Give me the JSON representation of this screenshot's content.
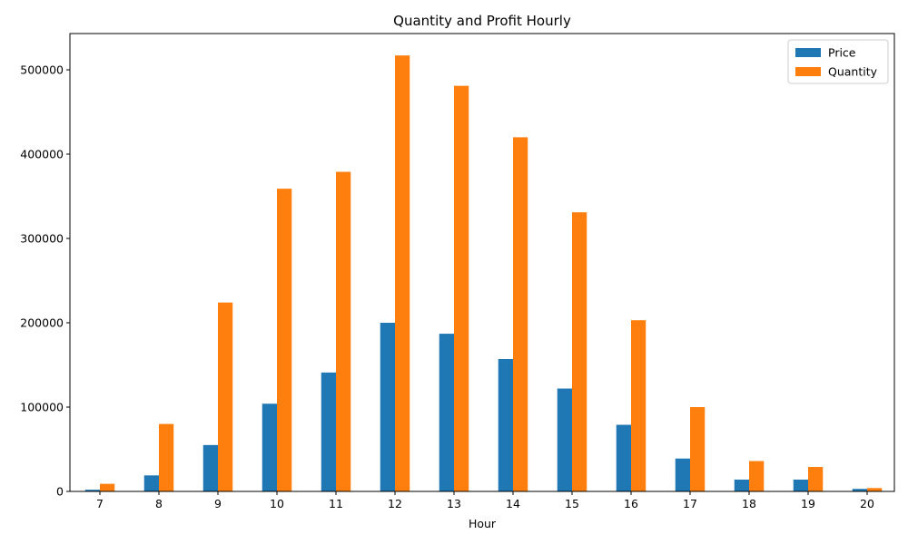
{
  "chart_data": {
    "type": "bar",
    "title": "Quantity and Profit Hourly",
    "xlabel": "Hour",
    "ylabel": "",
    "categories": [
      "7",
      "8",
      "9",
      "10",
      "11",
      "12",
      "13",
      "14",
      "15",
      "16",
      "17",
      "18",
      "19",
      "20"
    ],
    "series": [
      {
        "name": "Price",
        "color": "#1f77b4",
        "values": [
          2000,
          19000,
          55000,
          104000,
          141000,
          200000,
          187000,
          157000,
          122000,
          79000,
          39000,
          14000,
          14000,
          3000
        ]
      },
      {
        "name": "Quantity",
        "color": "#ff7f0e",
        "values": [
          9000,
          80000,
          224000,
          359000,
          379000,
          517000,
          481000,
          420000,
          331000,
          203000,
          100000,
          36000,
          29000,
          4000
        ]
      }
    ],
    "ylim": [
      0,
      543000
    ],
    "yticks": [
      0,
      100000,
      200000,
      300000,
      400000,
      500000
    ],
    "ytick_labels": [
      "0",
      "100000",
      "200000",
      "300000",
      "400000",
      "500000"
    ],
    "grid": false,
    "legend_position": "top-right"
  }
}
